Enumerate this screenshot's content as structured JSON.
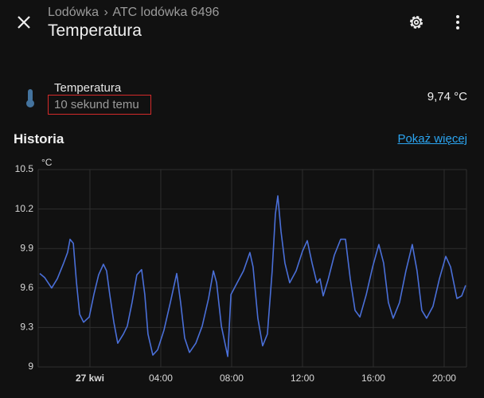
{
  "header": {
    "breadcrumb": [
      "Lodówka",
      "ATC lodówka 6496"
    ],
    "title": "Temperatura"
  },
  "entity": {
    "name": "Temperatura",
    "last_changed": "10 sekund temu",
    "state": "9,74 °C"
  },
  "history": {
    "title": "Historia",
    "link": "Pokaż więcej"
  },
  "chart_data": {
    "type": "line",
    "ylabel": "°C",
    "color": "#4a6fd8",
    "grid": true,
    "xlim": [
      -2.92,
      21.26
    ],
    "ylim": [
      9,
      10.5
    ],
    "xticks": [
      {
        "value": 0,
        "label": "27 kwi"
      },
      {
        "value": 4,
        "label": "04:00"
      },
      {
        "value": 8,
        "label": "08:00"
      },
      {
        "value": 12,
        "label": "12:00"
      },
      {
        "value": 16,
        "label": "16:00"
      },
      {
        "value": 20,
        "label": "20:00"
      }
    ],
    "yticks": [
      9,
      9.3,
      9.6,
      9.9,
      10.2,
      10.5
    ],
    "x": [
      -2.83,
      -2.56,
      -2.16,
      -1.84,
      -1.48,
      -1.26,
      -1.12,
      -0.94,
      -0.76,
      -0.58,
      -0.36,
      -0.04,
      0.22,
      0.49,
      0.76,
      0.94,
      1.12,
      1.35,
      1.57,
      1.89,
      2.11,
      2.38,
      2.65,
      2.92,
      3.1,
      3.28,
      3.55,
      3.82,
      4.18,
      4.54,
      4.9,
      5.12,
      5.35,
      5.62,
      5.98,
      6.34,
      6.7,
      6.97,
      7.15,
      7.42,
      7.78,
      7.96,
      8.31,
      8.67,
      9.03,
      9.21,
      9.48,
      9.75,
      10.02,
      10.29,
      10.47,
      10.61,
      10.79,
      11.01,
      11.28,
      11.64,
      12.0,
      12.27,
      12.54,
      12.81,
      12.99,
      13.17,
      13.44,
      13.8,
      14.16,
      14.43,
      14.7,
      14.97,
      15.24,
      15.6,
      15.96,
      16.31,
      16.58,
      16.85,
      17.12,
      17.48,
      17.84,
      18.2,
      18.47,
      18.74,
      19.01,
      19.37,
      19.73,
      20.09,
      20.36,
      20.72,
      20.99,
      21.21
    ],
    "values": [
      9.71,
      9.68,
      9.6,
      9.67,
      9.79,
      9.87,
      9.97,
      9.94,
      9.64,
      9.4,
      9.34,
      9.38,
      9.55,
      9.7,
      9.78,
      9.73,
      9.55,
      9.34,
      9.18,
      9.25,
      9.31,
      9.49,
      9.7,
      9.74,
      9.55,
      9.25,
      9.09,
      9.13,
      9.28,
      9.49,
      9.71,
      9.49,
      9.22,
      9.11,
      9.18,
      9.31,
      9.52,
      9.73,
      9.64,
      9.31,
      9.08,
      9.55,
      9.64,
      9.73,
      9.87,
      9.76,
      9.37,
      9.16,
      9.25,
      9.73,
      10.16,
      10.3,
      10.03,
      9.79,
      9.64,
      9.73,
      9.88,
      9.96,
      9.79,
      9.64,
      9.67,
      9.54,
      9.66,
      9.85,
      9.97,
      9.97,
      9.67,
      9.43,
      9.38,
      9.55,
      9.76,
      9.93,
      9.79,
      9.49,
      9.37,
      9.49,
      9.73,
      9.93,
      9.73,
      9.43,
      9.37,
      9.46,
      9.67,
      9.84,
      9.76,
      9.52,
      9.54,
      9.62
    ]
  }
}
